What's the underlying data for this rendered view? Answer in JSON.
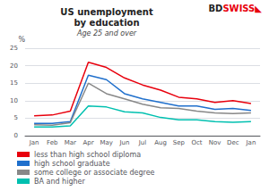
{
  "chart_data": {
    "type": "line",
    "title": "US unemployment\nby education",
    "subtitle": "Age 25 and over",
    "ylabel": "%",
    "annotations": [
      {
        "text": "BD",
        "color": "#222222"
      },
      {
        "text": "SWISS",
        "color": "#e8000d"
      },
      {
        "text": "◣",
        "color": "#e8000d"
      }
    ],
    "categories": [
      "Jan",
      "Feb",
      "Mar",
      "Apr",
      "May",
      "Jun",
      "Jul",
      "Aug",
      "Sep",
      "Oct",
      "Nov",
      "Dec",
      "Jan"
    ],
    "series": [
      {
        "name": "less than high school diploma",
        "color": "#e8000d",
        "values": [
          5.7,
          5.9,
          7.0,
          21.0,
          19.5,
          16.5,
          14.5,
          13.0,
          11.0,
          10.5,
          9.5,
          10.0,
          9.2
        ]
      },
      {
        "name": "high school graduate",
        "color": "#1f6fcc",
        "values": [
          3.5,
          3.5,
          4.0,
          17.3,
          16.0,
          12.0,
          10.5,
          9.5,
          8.5,
          8.5,
          7.5,
          7.8,
          7.2
        ]
      },
      {
        "name": "some college or associate degree",
        "color": "#888888",
        "values": [
          3.1,
          3.0,
          3.7,
          15.0,
          12.0,
          10.5,
          9.0,
          8.0,
          7.8,
          7.0,
          6.5,
          6.3,
          6.5
        ]
      },
      {
        "name": "BA and higher",
        "color": "#00c0b0",
        "values": [
          2.5,
          2.5,
          2.8,
          8.5,
          8.2,
          6.8,
          6.5,
          5.2,
          4.5,
          4.5,
          4.0,
          3.8,
          4.0
        ]
      }
    ],
    "ylim": [
      0,
      25
    ],
    "yticks": [
      0,
      5,
      10,
      15,
      20,
      25
    ],
    "grid": true,
    "legend": "bottom"
  }
}
